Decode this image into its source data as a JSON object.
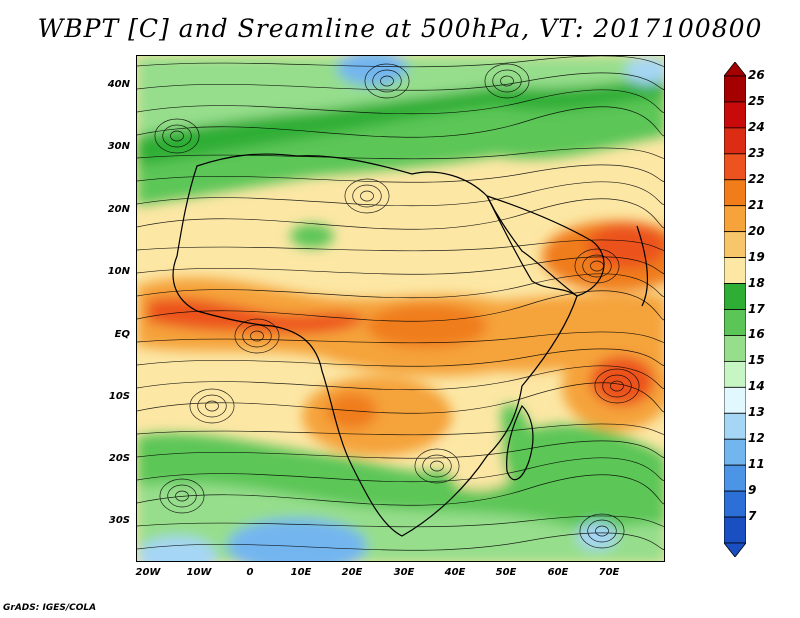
{
  "title": "WBPT [C] and Sreamline at 500hPa, VT: 2017100800",
  "credit": "GrADS: IGES/COLA",
  "axes": {
    "lat_labels": [
      "40N",
      "30N",
      "20N",
      "10N",
      "EQ",
      "10S",
      "20S",
      "30S"
    ],
    "lon_labels": [
      "20W",
      "10W",
      "0",
      "10E",
      "20E",
      "30E",
      "40E",
      "50E",
      "60E",
      "70E"
    ]
  },
  "colorbar": {
    "labels": [
      "26",
      "25",
      "24",
      "23",
      "22",
      "21",
      "20",
      "19",
      "18",
      "17",
      "16",
      "15",
      "14",
      "13",
      "12",
      "11",
      "9",
      "7"
    ],
    "colors": [
      "#a50000",
      "#c80a0a",
      "#dc2d14",
      "#ec531e",
      "#f07d1a",
      "#f5a33a",
      "#f8c66a",
      "#fce7a5",
      "#2eae35",
      "#5bc657",
      "#96de8c",
      "#c8f5c4",
      "#e2f8ff",
      "#a6d6f5",
      "#73b6ef",
      "#4b94e6",
      "#2c6fd6",
      "#1a4fc2"
    ]
  },
  "map": {
    "region": "Africa",
    "field_colors": {
      "cool_green": "#5bc657",
      "light_green": "#96de8c",
      "yellow": "#fce7a5",
      "orange": "#f5a33a",
      "deep_orange": "#ec531e",
      "blue": "#73b6ef"
    }
  }
}
